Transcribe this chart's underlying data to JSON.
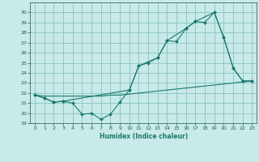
{
  "xlabel": "Humidex (Indice chaleur)",
  "background_color": "#c8eae8",
  "grid_color": "#90c8c4",
  "line_color": "#1a7a6e",
  "ylim": [
    19,
    31
  ],
  "xlim": [
    -0.5,
    23.5
  ],
  "yticks": [
    19,
    20,
    21,
    22,
    23,
    24,
    25,
    26,
    27,
    28,
    29,
    30
  ],
  "xticks": [
    0,
    1,
    2,
    3,
    4,
    5,
    6,
    7,
    8,
    9,
    10,
    11,
    12,
    13,
    14,
    15,
    16,
    17,
    18,
    19,
    20,
    21,
    22,
    23
  ],
  "series1_x": [
    0,
    1,
    2,
    3,
    4,
    5,
    6,
    7,
    8,
    9,
    10,
    11,
    12,
    13,
    14,
    15,
    16,
    17,
    18,
    19,
    20,
    21,
    22,
    23
  ],
  "series1_y": [
    21.8,
    21.5,
    21.1,
    21.2,
    21.0,
    19.9,
    20.0,
    19.4,
    19.9,
    21.1,
    22.3,
    24.7,
    25.0,
    25.5,
    27.2,
    27.1,
    28.4,
    29.1,
    29.0,
    30.0,
    27.5,
    24.5,
    23.2,
    23.2
  ],
  "series2_x": [
    0,
    1,
    2,
    3,
    4,
    5,
    6,
    7,
    8,
    9,
    10,
    11,
    12,
    13,
    14,
    15,
    16,
    17,
    18,
    19,
    20,
    21,
    22,
    23
  ],
  "series2_y": [
    21.8,
    21.7,
    21.7,
    21.7,
    21.7,
    21.7,
    21.7,
    21.7,
    21.8,
    21.8,
    21.9,
    22.0,
    22.1,
    22.2,
    22.3,
    22.4,
    22.5,
    22.6,
    22.7,
    22.8,
    22.9,
    23.0,
    23.1,
    23.2
  ],
  "series3_x": [
    0,
    1,
    2,
    3,
    10,
    11,
    13,
    14,
    16,
    17,
    19,
    20,
    21,
    22,
    23
  ],
  "series3_y": [
    21.8,
    21.5,
    21.1,
    21.2,
    22.3,
    24.7,
    25.5,
    27.2,
    28.4,
    29.1,
    30.0,
    27.5,
    24.5,
    23.2,
    23.2
  ]
}
